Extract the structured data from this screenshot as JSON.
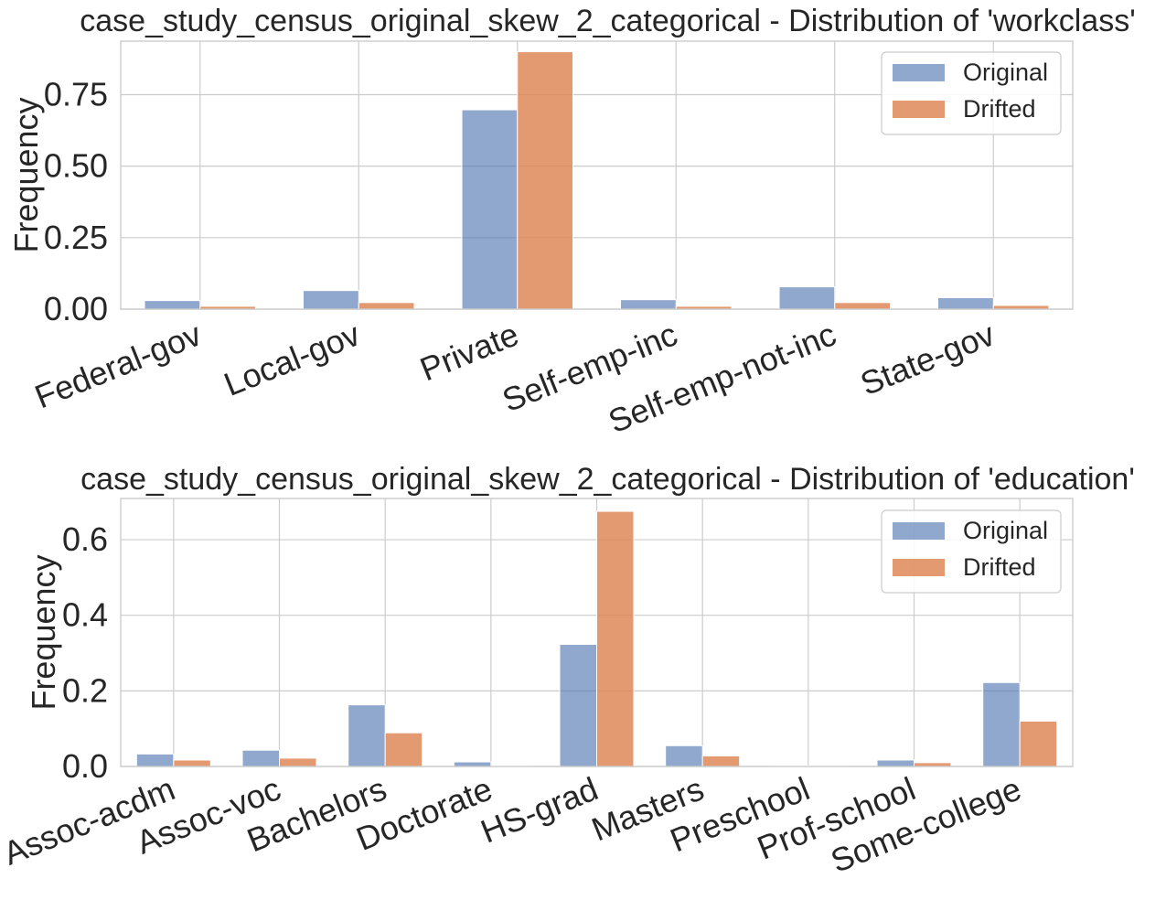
{
  "chart_data": [
    {
      "type": "bar",
      "title": "case_study_census_original_skew_2_categorical - Distribution of 'workclass'",
      "xlabel": "",
      "ylabel": "Frequency",
      "categories": [
        "Federal-gov",
        "Local-gov",
        "Private",
        "Self-emp-inc",
        "Self-emp-not-inc",
        "State-gov"
      ],
      "series": [
        {
          "name": "Original",
          "color": "#4c72b0",
          "values": [
            0.03,
            0.065,
            0.697,
            0.033,
            0.078,
            0.04
          ]
        },
        {
          "name": "Drifted",
          "color": "#dd8452",
          "values": [
            0.01,
            0.023,
            0.9,
            0.01,
            0.023,
            0.013
          ]
        }
      ],
      "ylim": [
        0,
        0.937
      ],
      "yticks": [
        0.0,
        0.25,
        0.5,
        0.75
      ],
      "ytick_labels": [
        "0.00",
        "0.25",
        "0.50",
        "0.75"
      ],
      "grid": true,
      "legend_position": "upper right"
    },
    {
      "type": "bar",
      "title": "case_study_census_original_skew_2_categorical - Distribution of 'education'",
      "xlabel": "",
      "ylabel": "Frequency",
      "categories": [
        "Assoc-acdm",
        "Assoc-voc",
        "Bachelors",
        "Doctorate",
        "HS-grad",
        "Masters",
        "Preschool",
        "Prof-school",
        "Some-college"
      ],
      "series": [
        {
          "name": "Original",
          "color": "#4c72b0",
          "values": [
            0.033,
            0.043,
            0.163,
            0.012,
            0.323,
            0.055,
            0.002,
            0.017,
            0.222
          ]
        },
        {
          "name": "Drifted",
          "color": "#dd8452",
          "values": [
            0.017,
            0.022,
            0.089,
            0.002,
            0.675,
            0.028,
            0.001,
            0.01,
            0.12
          ]
        }
      ],
      "ylim": [
        0,
        0.709
      ],
      "yticks": [
        0.0,
        0.2,
        0.4,
        0.6
      ],
      "ytick_labels": [
        "0.0",
        "0.2",
        "0.4",
        "0.6"
      ],
      "grid": true,
      "legend_position": "upper right"
    }
  ]
}
